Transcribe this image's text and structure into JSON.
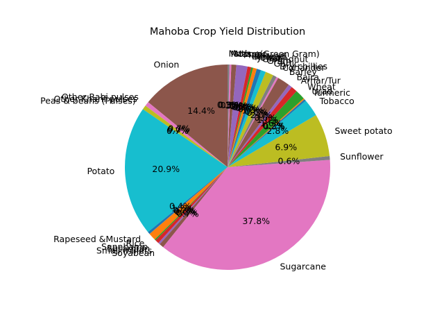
{
  "chart_data": {
    "type": "pie",
    "title": "Mahoba Crop Yield Distribution",
    "start_angle_deg": 90,
    "direction": "counterclockwise",
    "labels": [
      "Onion",
      "Other Rabi pulses",
      "Other Kharif pulses",
      "Peas & beans (Pulses)",
      "Potato",
      "Rapeseed &Mustard",
      "Rice",
      "Sannhamp",
      "Sesamum",
      "Small millets",
      "Soyabean",
      "Sugarcane",
      "Sunflower",
      "Sweet potato",
      "Tobacco",
      "Turmeric",
      "Urad",
      "Wheat",
      "Arhar/Tur",
      "Bajra",
      "Barley",
      "Coriander",
      "Dry chillies",
      "Garlic",
      "Gram",
      "Groundnut",
      "Jowar",
      "Khesari",
      "Linseed",
      "Maize",
      "Masoor",
      "Moong(Green Gram)",
      "Moth"
    ],
    "values": [
      14.4,
      0.7,
      0.0,
      0.7,
      20.9,
      0.4,
      1.2,
      0.2,
      0.6,
      0.3,
      0.7,
      37.8,
      0.6,
      6.9,
      2.8,
      0.3,
      0.2,
      1.6,
      1.0,
      0.6,
      2.0,
      0.3,
      0.6,
      1.3,
      0.8,
      0.7,
      0.6,
      0.3,
      0.6,
      1.8,
      0.8,
      0.3,
      0.3
    ],
    "pct_labels": [
      "14.4%",
      "0.7%",
      "0.0%",
      "0.7%",
      "20.9%",
      "0.4%",
      "1.2%",
      "0.2%",
      "0.6%",
      "0.3%",
      "0.7%",
      "37.8%",
      "0.6%",
      "6.9%",
      "2.8%",
      "0.3%",
      "0.2%",
      "1.6%",
      "1.0%",
      "0.6%",
      "2.0%",
      "0.3%",
      "0.6%",
      "1.3%",
      "0.8%",
      "0.7%",
      "0.6%",
      "0.3%",
      "0.6%",
      "1.8%",
      "0.8%",
      "0.3%",
      "0.3%"
    ],
    "colors": [
      "#8c564b",
      "#e377c2",
      "#7f7f7f",
      "#bcbd22",
      "#17becf",
      "#1f77b4",
      "#ff7f0e",
      "#2ca02c",
      "#d62728",
      "#9467bd",
      "#8c564b",
      "#e377c2",
      "#7f7f7f",
      "#bcbd22",
      "#17becf",
      "#1f77b4",
      "#ff7f0e",
      "#2ca02c",
      "#d62728",
      "#9467bd",
      "#8c564b",
      "#e377c2",
      "#7f7f7f",
      "#bcbd22",
      "#17becf",
      "#1f77b4",
      "#ff7f0e",
      "#2ca02c",
      "#d62728",
      "#9467bd",
      "#8c564b",
      "#e377c2",
      "#7f7f7f"
    ],
    "legend": "none"
  }
}
